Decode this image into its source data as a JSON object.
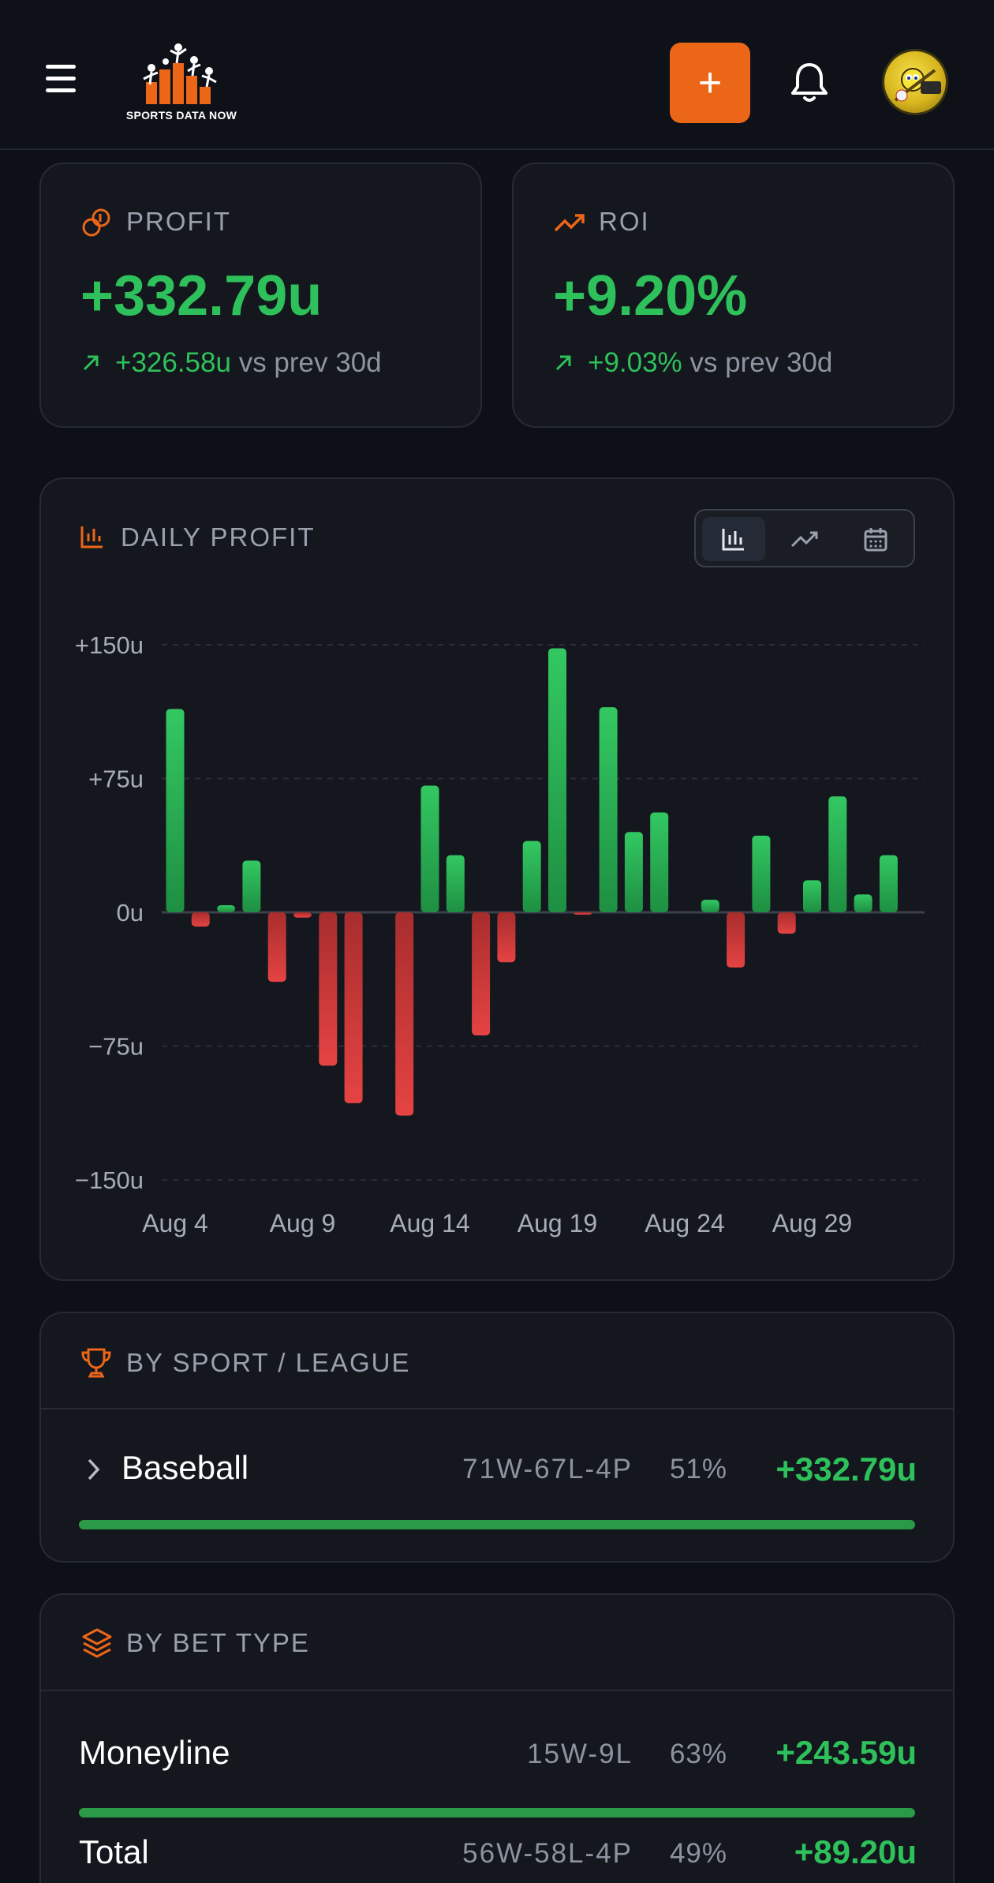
{
  "header": {
    "logo_text": "SPORTS DATA NOW",
    "add_label": "+",
    "icons": [
      "menu-icon",
      "bell-icon",
      "avatar"
    ]
  },
  "profit_card": {
    "label": "PROFIT",
    "value": "+332.79u",
    "change": "+326.58u",
    "change_suffix": "vs prev 30d"
  },
  "roi_card": {
    "label": "ROI",
    "value": "+9.20%",
    "change": "+9.03%",
    "change_suffix": "vs prev 30d"
  },
  "daily_profit": {
    "label": "DAILY PROFIT",
    "toggles": [
      "bar-chart-icon",
      "line-chart-icon",
      "calendar-icon"
    ],
    "active_toggle": 0
  },
  "chart_data": {
    "type": "bar",
    "x_start_label": "Aug 4",
    "tick_labels_x": [
      "Aug 4",
      "Aug 9",
      "Aug 14",
      "Aug 19",
      "Aug 24",
      "Aug 29"
    ],
    "tick_labels_y": [
      "+150u",
      "+75u",
      "0u",
      "−75u",
      "−150u"
    ],
    "ylim": [
      -150,
      150
    ],
    "grid": true,
    "positive_color": "#2ec15b",
    "negative_color": "#e03d3d",
    "categories": [
      "Aug 4",
      "Aug 5",
      "Aug 6",
      "Aug 7",
      "Aug 8",
      "Aug 9",
      "Aug 10",
      "Aug 11",
      "Aug 12",
      "Aug 13",
      "Aug 14",
      "Aug 15",
      "Aug 16",
      "Aug 17",
      "Aug 18",
      "Aug 19",
      "Aug 20",
      "Aug 21",
      "Aug 22",
      "Aug 23",
      "Aug 24",
      "Aug 25",
      "Aug 26",
      "Aug 27",
      "Aug 28",
      "Aug 29",
      "Aug 30",
      "Aug 31",
      "Sep 1",
      "Sep 2"
    ],
    "values": [
      114,
      -8,
      4,
      29,
      -39,
      -3,
      -86,
      -107,
      0,
      -114,
      71,
      32,
      -69,
      -28,
      40,
      148,
      -1,
      115,
      45,
      56,
      0,
      7,
      -31,
      43,
      -12,
      18,
      65,
      10,
      32,
      0
    ]
  },
  "by_sport": {
    "title": "BY SPORT / LEAGUE",
    "rows": [
      {
        "name": "Baseball",
        "record": "71W-67L-4P",
        "pct": "51%",
        "profit": "+332.79u",
        "bar_fraction": 1.0
      }
    ]
  },
  "by_bet_type": {
    "title": "BY BET TYPE",
    "rows": [
      {
        "name": "Moneyline",
        "record": "15W-9L",
        "pct": "63%",
        "profit": "+243.59u",
        "bar_fraction": 1.0
      },
      {
        "name": "Total",
        "record": "56W-58L-4P",
        "pct": "49%",
        "profit": "+89.20u",
        "bar_fraction": 0.37
      }
    ]
  }
}
